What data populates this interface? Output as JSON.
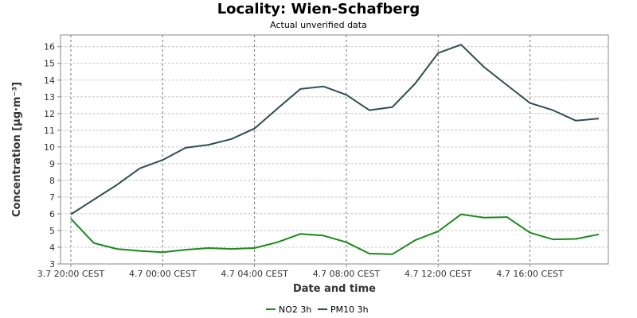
{
  "chart_data": {
    "type": "line",
    "title": "Locality: Wien-Schafberg",
    "subtitle": "Actual unverified data",
    "xlabel": "Date and time",
    "ylabel": "Concentration [µg·m⁻³]",
    "ylim": [
      3,
      16.7
    ],
    "yticks": [
      3,
      4,
      5,
      6,
      7,
      8,
      9,
      10,
      11,
      12,
      13,
      14,
      15,
      16
    ],
    "x": [
      "3.7 20:00 CEST",
      "3.7 21:00 CEST",
      "3.7 22:00 CEST",
      "3.7 23:00 CEST",
      "4.7 00:00 CEST",
      "4.7 01:00 CEST",
      "4.7 02:00 CEST",
      "4.7 03:00 CEST",
      "4.7 04:00 CEST",
      "4.7 05:00 CEST",
      "4.7 06:00 CEST",
      "4.7 07:00 CEST",
      "4.7 08:00 CEST",
      "4.7 09:00 CEST",
      "4.7 10:00 CEST",
      "4.7 11:00 CEST",
      "4.7 12:00 CEST",
      "4.7 13:00 CEST",
      "4.7 14:00 CEST",
      "4.7 15:00 CEST",
      "4.7 16:00 CEST",
      "4.7 17:00 CEST",
      "4.7 18:00 CEST",
      "4.7 19:00 CEST"
    ],
    "xticks": [
      "3.7 20:00 CEST",
      "4.7 00:00 CEST",
      "4.7 04:00 CEST",
      "4.7 08:00 CEST",
      "4.7 12:00 CEST",
      "4.7 16:00 CEST"
    ],
    "series": [
      {
        "name": "NO2 3h",
        "color": "#1a8a1a",
        "values": [
          5.7,
          4.25,
          3.9,
          3.78,
          3.7,
          3.85,
          3.95,
          3.9,
          3.95,
          4.3,
          4.8,
          4.7,
          4.3,
          3.62,
          3.58,
          4.42,
          4.95,
          5.97,
          5.77,
          5.8,
          4.87,
          4.47,
          4.5,
          4.77
        ]
      },
      {
        "name": "PM10 3h",
        "color": "#2f4f4f",
        "values": [
          5.97,
          6.85,
          7.73,
          8.72,
          9.22,
          9.95,
          10.13,
          10.48,
          11.1,
          12.3,
          13.47,
          13.62,
          13.12,
          12.2,
          12.38,
          13.8,
          15.62,
          16.12,
          14.78,
          13.7,
          12.63,
          12.2,
          11.57,
          11.7
        ]
      }
    ],
    "grid": true,
    "legend": "bottom"
  }
}
